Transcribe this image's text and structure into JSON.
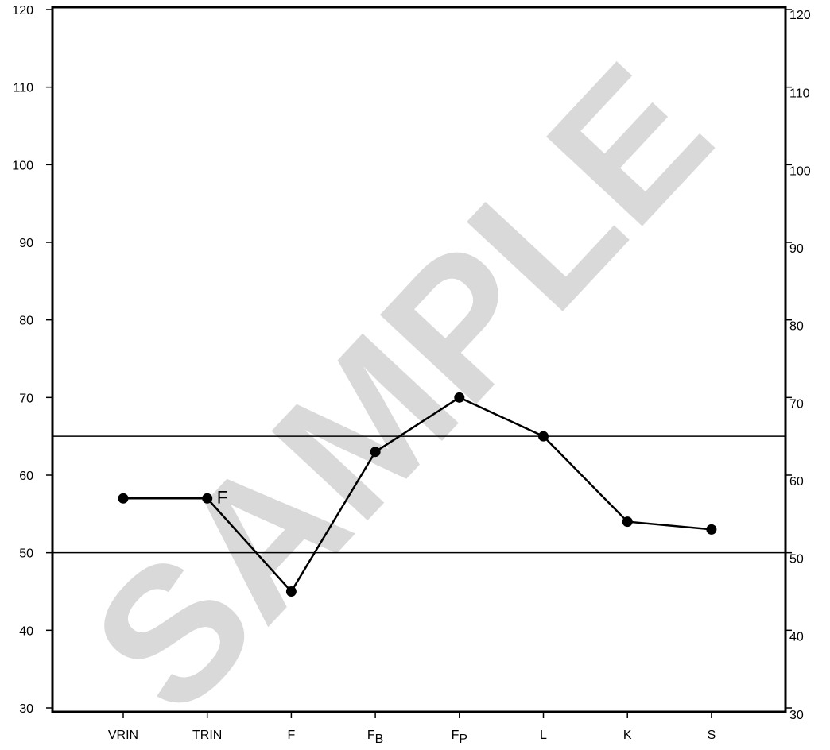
{
  "chart_data": {
    "type": "line",
    "title": "",
    "xlabel": "",
    "ylabel": "",
    "ylim": [
      30,
      120
    ],
    "yticks": [
      30,
      40,
      50,
      60,
      70,
      80,
      90,
      100,
      110,
      120
    ],
    "categories": [
      {
        "main": "VRIN",
        "sub": ""
      },
      {
        "main": "TRIN",
        "sub": ""
      },
      {
        "main": "F",
        "sub": ""
      },
      {
        "main": "F",
        "sub": "B"
      },
      {
        "main": "F",
        "sub": "P"
      },
      {
        "main": "L",
        "sub": ""
      },
      {
        "main": "K",
        "sub": ""
      },
      {
        "main": "S",
        "sub": ""
      }
    ],
    "series": [
      {
        "values": [
          57,
          57,
          45,
          63,
          70,
          65,
          54,
          53
        ]
      }
    ],
    "reference_lines": [
      65,
      50
    ],
    "annotations": [
      {
        "category_index": 1,
        "text": "F"
      }
    ],
    "grid": false,
    "watermark": "SAMPLE"
  }
}
